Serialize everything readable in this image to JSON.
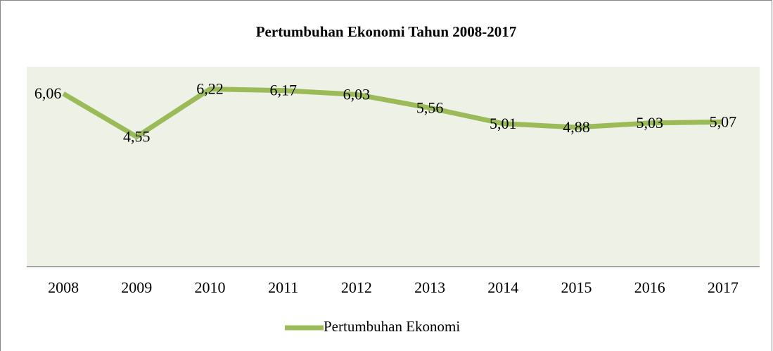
{
  "chart_data": {
    "type": "line",
    "title": "Pertumbuhan Ekonomi Tahun 2008-2017",
    "categories": [
      "2008",
      "2009",
      "2010",
      "2011",
      "2012",
      "2013",
      "2014",
      "2015",
      "2016",
      "2017"
    ],
    "series": [
      {
        "name": "Pertumbuhan Ekonomi",
        "color": "#9bbb59",
        "values": [
          6.06,
          4.55,
          6.22,
          6.17,
          6.03,
          5.56,
          5.01,
          4.88,
          5.03,
          5.07
        ],
        "value_labels": [
          "6,06",
          "4,55",
          "6,22",
          "6,17",
          "6,03",
          "5,56",
          "5,01",
          "4,88",
          "5,03",
          "5,07"
        ]
      }
    ],
    "ylim": [
      0,
      7
    ],
    "legend": "bottom"
  }
}
